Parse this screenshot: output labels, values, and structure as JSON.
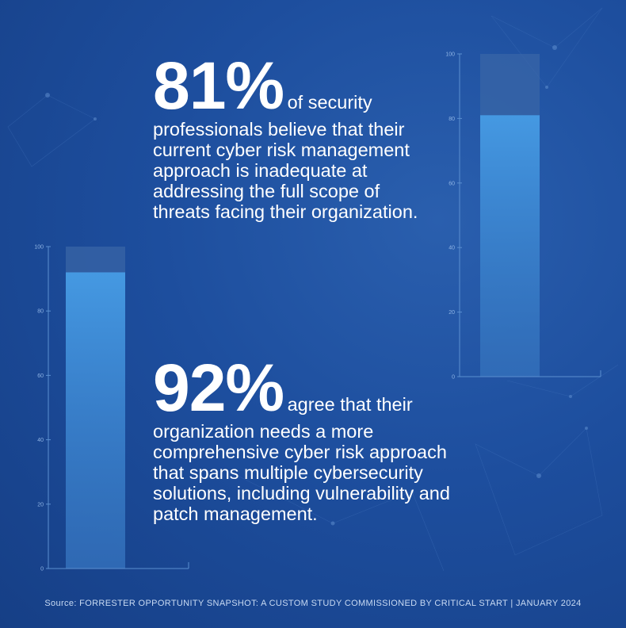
{
  "stat1": {
    "percent": "81%",
    "text_first": "of security",
    "text_lines": [
      "professionals believe that their",
      "current cyber risk management",
      "approach is inadequate at",
      "addressing the full scope of",
      "threats facing their organization."
    ]
  },
  "stat2": {
    "percent": "92%",
    "text_first": "agree that their",
    "text_lines": [
      "organization needs a  more",
      "comprehensive cyber risk approach",
      "that spans multiple cybersecurity",
      "solutions, including vulnerability and",
      "patch management."
    ]
  },
  "source": "Source: FORRESTER OPPORTUNITY SNAPSHOT: A CUSTOM STUDY COMMISSIONED BY CRITICAL START | JANUARY 2024",
  "colors": {
    "background": "#1d4e9e",
    "bar_fill": "#3d8fdc",
    "bar_track": "#3a66a6",
    "text": "#ffffff"
  },
  "chart_data": [
    {
      "type": "bar",
      "categories": [
        ""
      ],
      "values": [
        81
      ],
      "ylim": [
        0,
        100
      ],
      "yticks": [
        "0",
        "20",
        "40",
        "60",
        "80",
        "100"
      ],
      "grid": false
    },
    {
      "type": "bar",
      "categories": [
        ""
      ],
      "values": [
        92
      ],
      "ylim": [
        0,
        100
      ],
      "yticks": [
        "0",
        "20",
        "40",
        "60",
        "80",
        "100"
      ],
      "grid": false
    }
  ]
}
